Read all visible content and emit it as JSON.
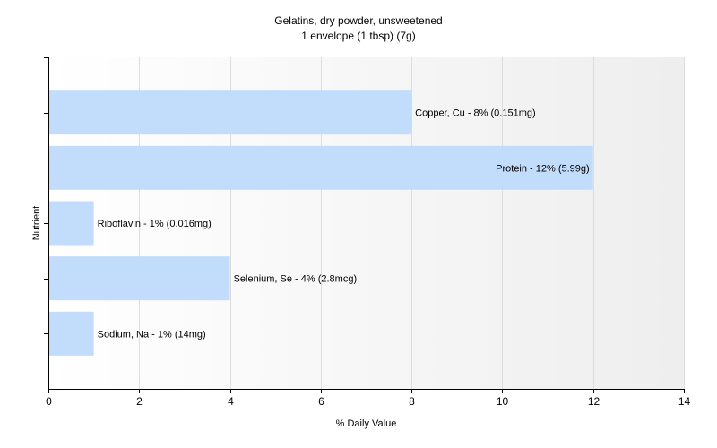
{
  "chart_data": {
    "type": "bar",
    "orientation": "horizontal",
    "title": "Gelatins, dry powder, unsweetened",
    "subtitle": "1 envelope (1 tbsp) (7g)",
    "xlabel": "% Daily Value",
    "ylabel": "Nutrient",
    "xlim": [
      0,
      14
    ],
    "xticks": [
      0,
      2,
      4,
      6,
      8,
      10,
      12,
      14
    ],
    "grid": true,
    "legend": "none",
    "bars": [
      {
        "value": 8,
        "label": "Copper, Cu - 8% (0.151mg)"
      },
      {
        "value": 12,
        "label": "Protein - 12% (5.99g)"
      },
      {
        "value": 1,
        "label": "Riboflavin - 1% (0.016mg)"
      },
      {
        "value": 4,
        "label": "Selenium, Se - 4% (2.8mcg)"
      },
      {
        "value": 1,
        "label": "Sodium, Na - 1% (14mg)"
      }
    ],
    "colors": {
      "bar": "#c2dcfc",
      "plot_gradient_start": "#ffffff",
      "plot_gradient_end": "#eeeeee",
      "grid": "#dddddd",
      "axis": "#000000",
      "text": "#000000"
    }
  }
}
